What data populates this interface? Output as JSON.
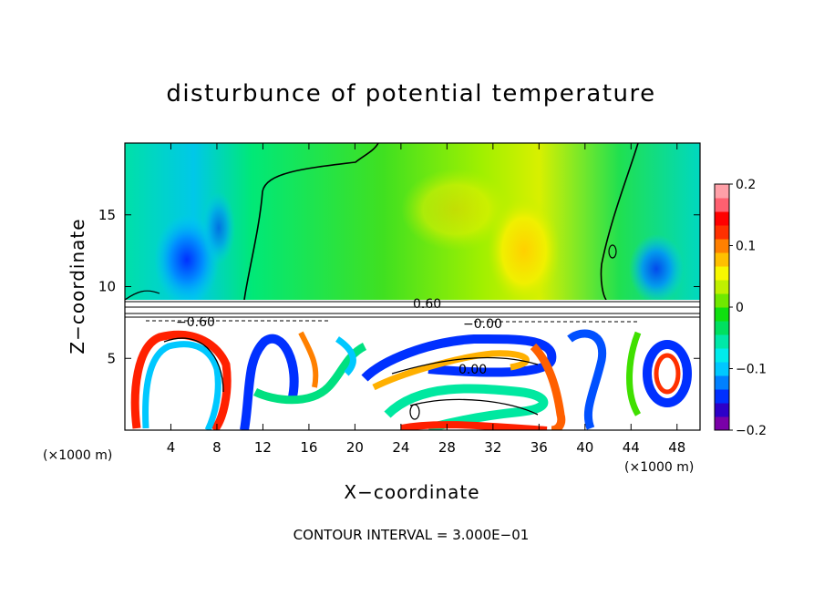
{
  "chart_data": {
    "type": "heatmap",
    "title": "disturbunce of potential temperature",
    "xlabel": "X−coordinate",
    "ylabel": "Z−coordinate",
    "x_unit_left": "(×1000 m)",
    "x_unit_right": "(×1000 m)",
    "xlim": [
      0,
      50
    ],
    "ylim": [
      0,
      20
    ],
    "x_ticks": [
      4,
      8,
      12,
      16,
      20,
      24,
      28,
      32,
      36,
      40,
      44,
      48
    ],
    "y_ticks": [
      5,
      10,
      15
    ],
    "footer": "CONTOUR INTERVAL = 3.000E−01",
    "contour_interval": 0.3,
    "contour_labels": [
      {
        "text": "0.60",
        "x": 26.5,
        "z": 8.6
      },
      {
        "text": "−0.60",
        "x": 6.5,
        "z": 7.7
      },
      {
        "text": "−0.00",
        "x": 31.5,
        "z": 7.5
      },
      {
        "text": "0.00",
        "x": 30.5,
        "z": 4.2
      }
    ],
    "colorbar": {
      "min": -0.2,
      "max": 0.2,
      "tick_labels": [
        "0.2",
        "0.1",
        "0",
        "−0.1",
        "−0.2"
      ],
      "colors": [
        "#7a00a8",
        "#2d00c8",
        "#0030ff",
        "#0080ff",
        "#00c8ff",
        "#00ecec",
        "#00e8a8",
        "#00e060",
        "#10e010",
        "#70e800",
        "#c0f000",
        "#f8f800",
        "#ffc000",
        "#ff8000",
        "#ff3000",
        "#ff0000",
        "#ff6070",
        "#ffa0a8"
      ]
    }
  }
}
